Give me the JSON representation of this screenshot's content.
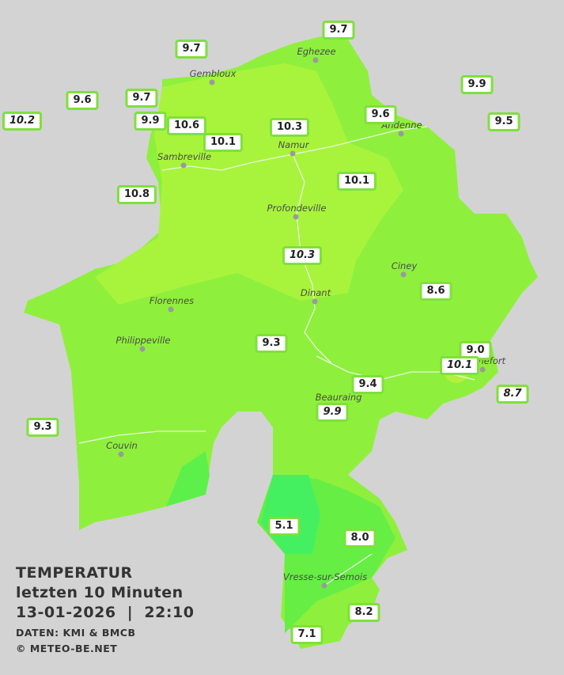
{
  "title": {
    "lines": [
      "TEMPERATUR",
      "letzten 10 Minuten",
      "13-01-2026  |  22:10"
    ],
    "credits": [
      "DATEN: KMI & BMCB",
      "© METEO-BE.NET"
    ]
  },
  "cities": [
    "Eghezee",
    "Gembloux",
    "Andenne",
    "Namur",
    "Sambreville",
    "Profondeville",
    "Ciney",
    "Florennes",
    "Dinant",
    "Philippeville",
    "Rochefort",
    "Beauraing",
    "Couvin",
    "Vresse-sur-Semois"
  ],
  "stations": [
    "9.7",
    "9.7",
    "9.6",
    "9.7",
    "9.9",
    "10.2",
    "9.9",
    "10.6",
    "10.3",
    "9.6",
    "9.5",
    "10.1",
    "10.1",
    "10.8",
    "10.3",
    "8.6",
    "9.3",
    "9.0",
    "10.1",
    "8.7",
    "9.4",
    "9.9",
    "9.3",
    "5.1",
    "8.0",
    "8.2",
    "7.1"
  ]
}
